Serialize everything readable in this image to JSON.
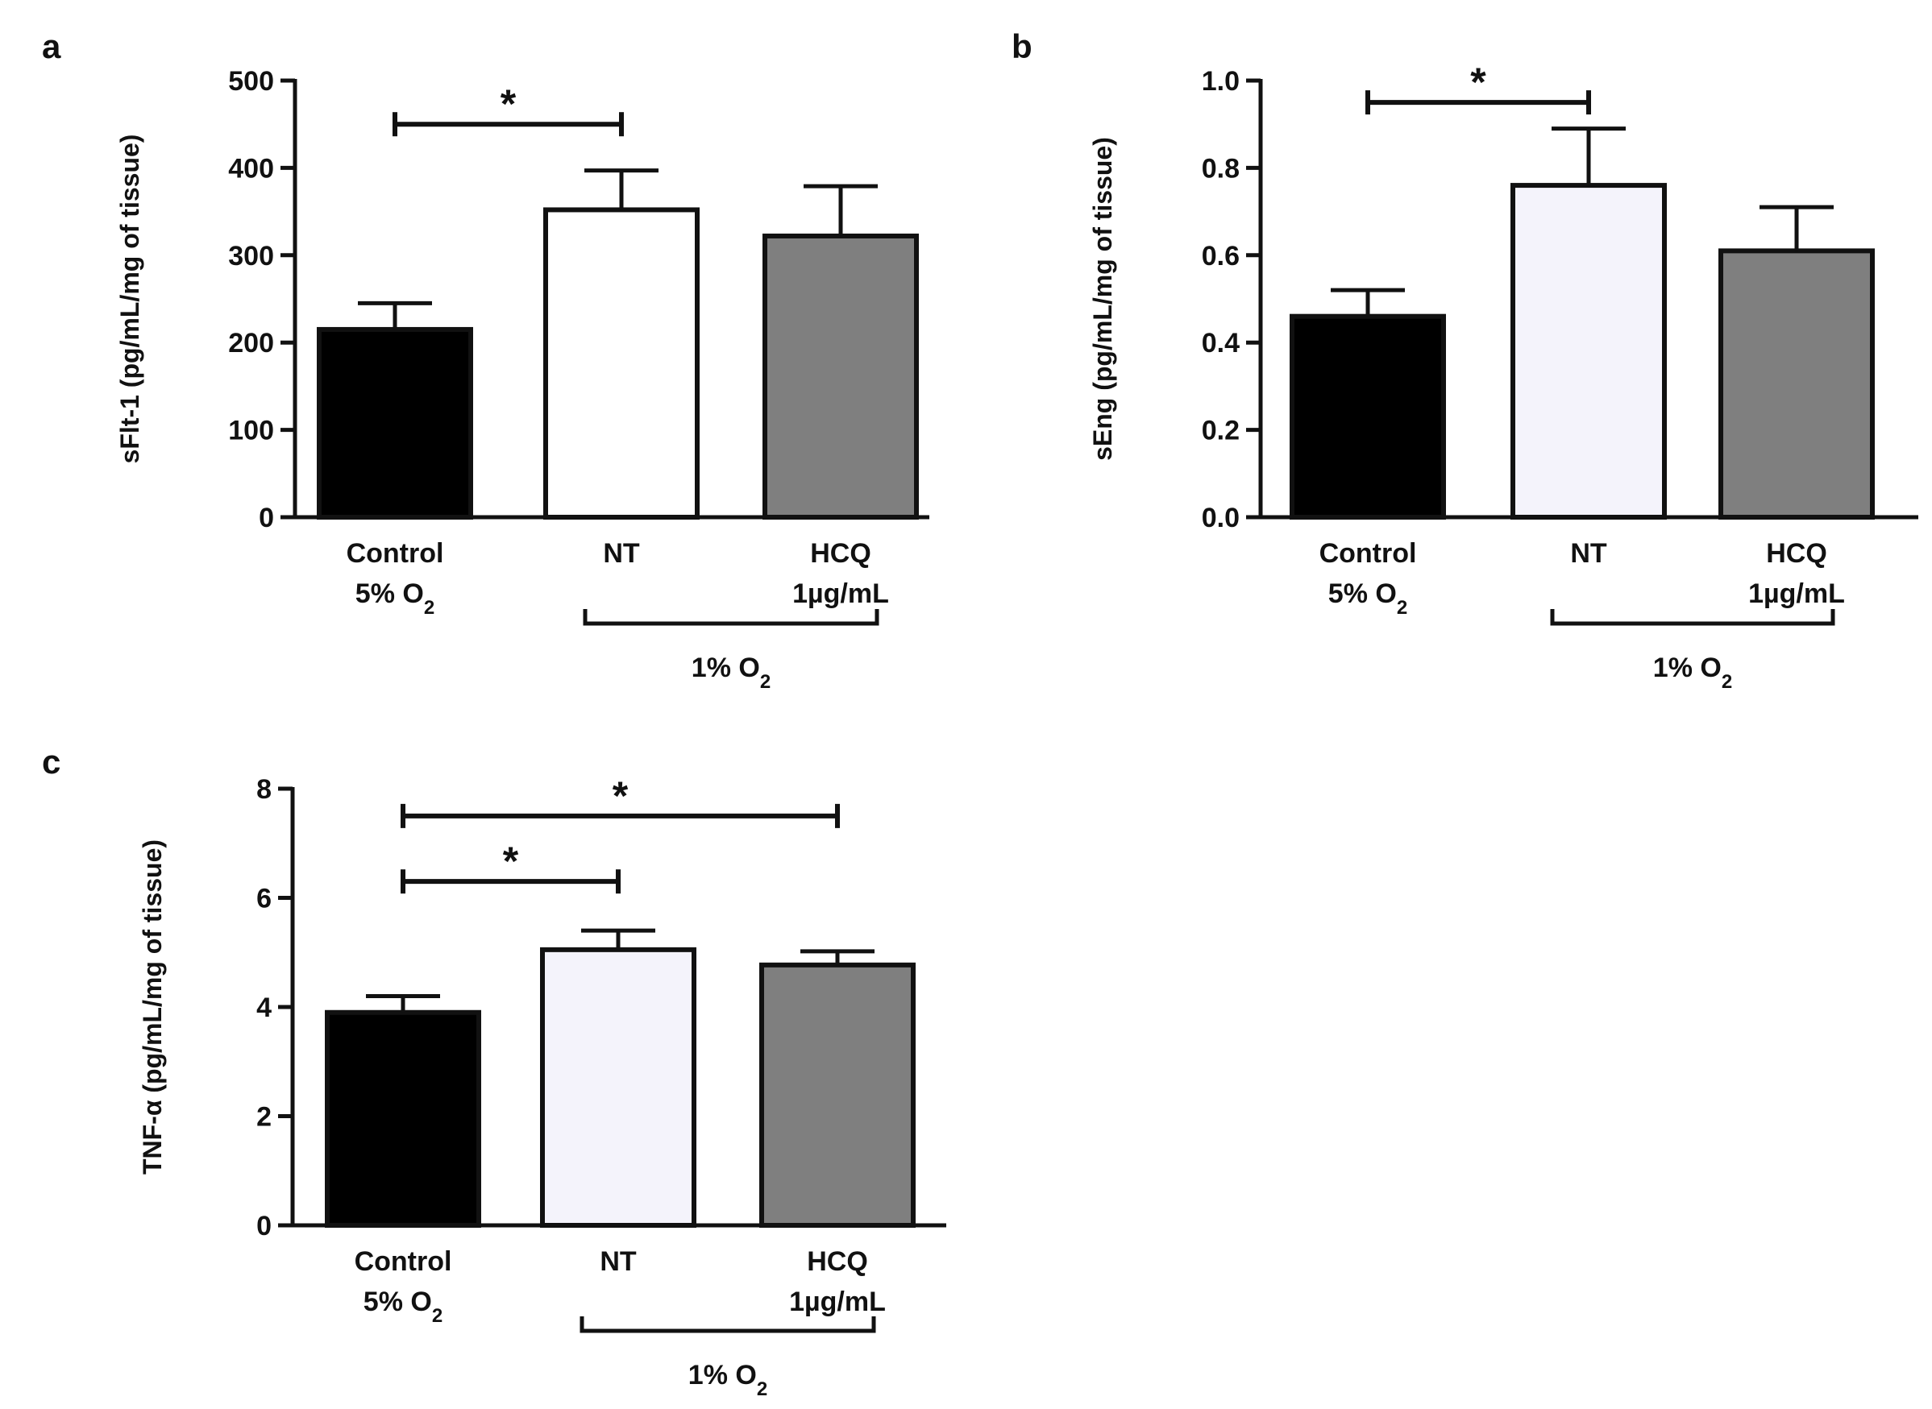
{
  "colors": {
    "ink": "#111111",
    "black_bar": "#000000",
    "white_bar": "#ffffff",
    "lavender_bar": "#f4f3fb",
    "grey_bar": "#7f7f7f"
  },
  "chart_data": [
    {
      "panel": "a",
      "type": "bar",
      "ylabel": "sFlt-1 (pg/mL/mg of tissue)",
      "ylim": [
        0,
        500
      ],
      "yticks": [
        0,
        100,
        200,
        300,
        400,
        500
      ],
      "ytick_labels": [
        "0",
        "100",
        "200",
        "300",
        "400",
        "500"
      ],
      "categories": [
        {
          "line1": "Control",
          "line2": "5% O",
          "line2_sub": "2"
        },
        {
          "line1": "NT",
          "line2": "",
          "line2_sub": ""
        },
        {
          "line1": "HCQ",
          "line2": "1µg/mL",
          "line2_sub": ""
        }
      ],
      "values": [
        215,
        352,
        322
      ],
      "errors": [
        30,
        45,
        57
      ],
      "bar_colors": [
        "#000000",
        "#ffffff",
        "#7f7f7f"
      ],
      "group_bracket": {
        "from": 1,
        "to": 2,
        "label": "1% O",
        "label_sub": "2"
      },
      "significance": [
        {
          "from": 0,
          "to": 1,
          "y": 450,
          "label": "*"
        }
      ]
    },
    {
      "panel": "b",
      "type": "bar",
      "ylabel": "sEng (pg/mL/mg of tissue)",
      "ylim": [
        0,
        1.0
      ],
      "yticks": [
        0,
        0.2,
        0.4,
        0.6,
        0.8,
        1.0
      ],
      "ytick_labels": [
        "0.0",
        "0.2",
        "0.4",
        "0.6",
        "0.8",
        "1.0"
      ],
      "categories": [
        {
          "line1": "Control",
          "line2": "5% O",
          "line2_sub": "2"
        },
        {
          "line1": "NT",
          "line2": "",
          "line2_sub": ""
        },
        {
          "line1": "HCQ",
          "line2": "1µg/mL",
          "line2_sub": ""
        }
      ],
      "values": [
        0.46,
        0.76,
        0.61
      ],
      "errors": [
        0.06,
        0.13,
        0.1
      ],
      "bar_colors": [
        "#000000",
        "#f4f3fb",
        "#7f7f7f"
      ],
      "group_bracket": {
        "from": 1,
        "to": 2,
        "label": "1% O",
        "label_sub": "2"
      },
      "significance": [
        {
          "from": 0,
          "to": 1,
          "y": 0.95,
          "label": "*"
        }
      ]
    },
    {
      "panel": "c",
      "type": "bar",
      "ylabel": "TNF-α (pg/mL/mg of tissue)",
      "ylim": [
        0,
        8
      ],
      "yticks": [
        0,
        2,
        4,
        6,
        8
      ],
      "ytick_labels": [
        "0",
        "2",
        "4",
        "6",
        "8"
      ],
      "categories": [
        {
          "line1": "Control",
          "line2": "5% O",
          "line2_sub": "2"
        },
        {
          "line1": "NT",
          "line2": "",
          "line2_sub": ""
        },
        {
          "line1": "HCQ",
          "line2": "1µg/mL",
          "line2_sub": ""
        }
      ],
      "values": [
        3.9,
        5.05,
        4.77
      ],
      "errors": [
        0.3,
        0.35,
        0.25
      ],
      "bar_colors": [
        "#000000",
        "#f4f3fb",
        "#7f7f7f"
      ],
      "group_bracket": {
        "from": 1,
        "to": 2,
        "label": "1% O",
        "label_sub": "2"
      },
      "significance": [
        {
          "from": 0,
          "to": 2,
          "y": 7.5,
          "label": "*"
        },
        {
          "from": 0,
          "to": 1,
          "y": 6.3,
          "label": "*"
        }
      ]
    }
  ]
}
